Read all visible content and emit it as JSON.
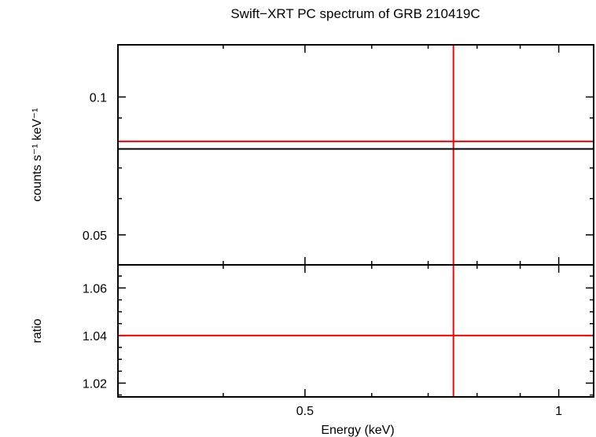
{
  "chart_data": [
    {
      "panel": "spectrum",
      "type": "scatter",
      "title": "Swift−XRT PC spectrum of GRB 210419C",
      "ylabel": "counts s⁻¹ keV⁻¹",
      "xlabel": "",
      "xscale": "log",
      "yscale": "log",
      "xlim": [
        0.3,
        1.1
      ],
      "ylim": [
        0.043,
        0.13
      ],
      "yticks": [
        {
          "value": 0.05,
          "label": "0.05"
        },
        {
          "value": 0.1,
          "label": "0.1"
        }
      ],
      "series": [
        {
          "role": "data",
          "color": "#ff0000",
          "points": [
            {
              "x": 0.75,
              "y": 0.08,
              "xerr": [
                0.3,
                1.1
              ],
              "yerr": [
                0.043,
                0.13
              ]
            }
          ]
        },
        {
          "role": "model",
          "color": "#000000",
          "points": [
            {
              "x": 0.3,
              "y": 0.077
            },
            {
              "x": 1.1,
              "y": 0.077
            }
          ]
        }
      ]
    },
    {
      "panel": "ratio",
      "type": "scatter",
      "ylabel": "ratio",
      "xlabel": "Energy (keV)",
      "xscale": "log",
      "xlim": [
        0.3,
        1.1
      ],
      "ylim": [
        1.0142,
        1.0697
      ],
      "xticks": [
        {
          "value": 0.5,
          "label": "0.5"
        },
        {
          "value": 1,
          "label": "1"
        }
      ],
      "yticks": [
        {
          "value": 1.02,
          "label": "1.02"
        },
        {
          "value": 1.04,
          "label": "1.04"
        },
        {
          "value": 1.06,
          "label": "1.06"
        }
      ],
      "series": [
        {
          "role": "data",
          "color": "#ff0000",
          "points": [
            {
              "x": 0.75,
              "y": 1.04,
              "xerr": [
                0.3,
                1.1
              ],
              "yerr": [
                1.0142,
                1.0697
              ]
            }
          ]
        }
      ]
    }
  ]
}
